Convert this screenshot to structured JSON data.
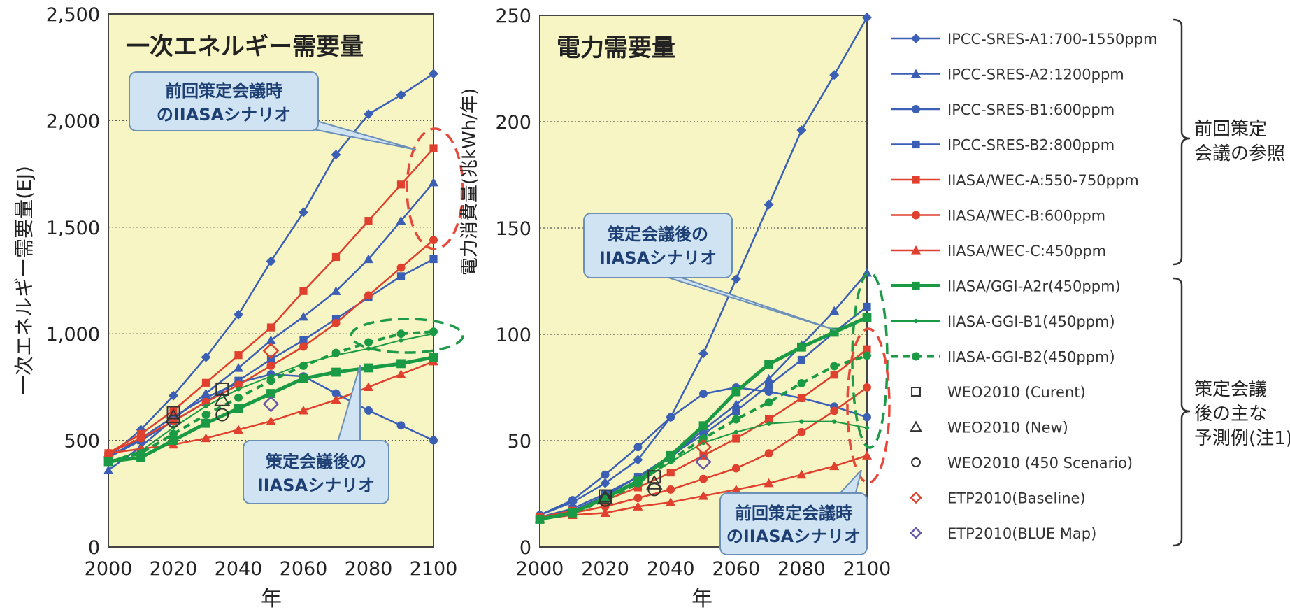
{
  "colors": {
    "plot_bg": "#f8f5c4",
    "blue": "#3a5fb4",
    "red": "#e0402e",
    "green": "#1a9a44",
    "callout_bg": "#cfe3f2",
    "callout_border": "#6c8fb8",
    "dash_red": "#e64a3c",
    "dash_green": "#1f9a48"
  },
  "legend": {
    "entries": [
      {
        "label": "IPCC-SRES-A1:700-1550ppm",
        "color": "#3a5fb4",
        "marker": "diamond",
        "line": "solid"
      },
      {
        "label": "IPCC-SRES-A2:1200ppm",
        "color": "#3a5fb4",
        "marker": "triangle",
        "line": "solid"
      },
      {
        "label": "IPCC-SRES-B1:600ppm",
        "color": "#3a5fb4",
        "marker": "circle",
        "line": "solid"
      },
      {
        "label": "IPCC-SRES-B2:800ppm",
        "color": "#3a5fb4",
        "marker": "square",
        "line": "solid"
      },
      {
        "label": "IIASA/WEC-A:550-750ppm",
        "color": "#e0402e",
        "marker": "square",
        "line": "solid"
      },
      {
        "label": "IIASA/WEC-B:600ppm",
        "color": "#e0402e",
        "marker": "circle",
        "line": "solid"
      },
      {
        "label": "IIASA/WEC-C:450ppm",
        "color": "#e0402e",
        "marker": "triangle",
        "line": "solid"
      },
      {
        "label": "IIASA/GGI-A2r(450ppm)",
        "color": "#1a9a44",
        "marker": "square",
        "line": "thick"
      },
      {
        "label": "IIASA-GGI-B1(450ppm)",
        "color": "#1a9a44",
        "marker": "dot",
        "line": "thin"
      },
      {
        "label": "IIASA-GGI-B2(450ppm)",
        "color": "#1a9a44",
        "marker": "circle",
        "line": "dashed"
      },
      {
        "label": "WEO2010 (Curent)",
        "color": "#333333",
        "marker": "open-square",
        "line": "none"
      },
      {
        "label": "WEO2010 (New)",
        "color": "#333333",
        "marker": "open-triangle",
        "line": "none"
      },
      {
        "label": "WEO2010 (450 Scenario)",
        "color": "#333333",
        "marker": "open-circle",
        "line": "none"
      },
      {
        "label": "ETP2010(Baseline)",
        "color": "#e0402e",
        "marker": "open-diamond",
        "line": "none"
      },
      {
        "label": "ETP2010(BLUE Map)",
        "color": "#6a5aa6",
        "marker": "open-diamond",
        "line": "none"
      }
    ],
    "groups": [
      {
        "label_lines": [
          "前回策定",
          "会議の参照"
        ]
      },
      {
        "label_lines": [
          "策定会議",
          "後の主な",
          "予測例(注1)"
        ]
      }
    ]
  },
  "chart_data": [
    {
      "type": "line",
      "title": "一次エネルギー需要量",
      "xlabel": "年",
      "ylabel": "一次エネルギー需要量(EJ)",
      "xlim": [
        2000,
        2100
      ],
      "ylim": [
        0,
        2500
      ],
      "x_ticks": [
        2000,
        2020,
        2040,
        2060,
        2080,
        2100
      ],
      "x_tick_labels": [
        "2000",
        "2020",
        "2040",
        "2060",
        "2080",
        "2100"
      ],
      "y_ticks": [
        0,
        500,
        1000,
        1500,
        2000,
        2500
      ],
      "y_tick_labels": [
        "0",
        "500",
        "1,000",
        "1,500",
        "2,000",
        "2,500"
      ],
      "grid": "horizontal-dotted",
      "series": [
        {
          "name": "IPCC-SRES-A1:700-1550ppm",
          "x": [
            2000,
            2010,
            2020,
            2030,
            2040,
            2050,
            2060,
            2070,
            2080,
            2090,
            2100
          ],
          "values": [
            420,
            550,
            710,
            890,
            1090,
            1340,
            1570,
            1840,
            2030,
            2120,
            2220
          ]
        },
        {
          "name": "IPCC-SRES-A2:1200ppm",
          "x": [
            2000,
            2010,
            2020,
            2030,
            2040,
            2050,
            2060,
            2070,
            2080,
            2090,
            2100
          ],
          "values": [
            360,
            470,
            600,
            720,
            840,
            970,
            1080,
            1200,
            1350,
            1530,
            1710
          ]
        },
        {
          "name": "IPCC-SRES-B1:600ppm",
          "x": [
            2000,
            2010,
            2020,
            2030,
            2040,
            2050,
            2060,
            2070,
            2080,
            2090,
            2100
          ],
          "values": [
            420,
            510,
            610,
            700,
            770,
            810,
            800,
            720,
            640,
            570,
            500
          ]
        },
        {
          "name": "IPCC-SRES-B2:800ppm",
          "x": [
            2000,
            2010,
            2020,
            2030,
            2040,
            2050,
            2060,
            2070,
            2080,
            2090,
            2100
          ],
          "values": [
            420,
            500,
            590,
            680,
            780,
            880,
            970,
            1070,
            1170,
            1270,
            1350
          ]
        },
        {
          "name": "IIASA/WEC-A:550-750ppm",
          "x": [
            2000,
            2010,
            2020,
            2030,
            2040,
            2050,
            2060,
            2070,
            2080,
            2090,
            2100
          ],
          "values": [
            440,
            530,
            640,
            770,
            900,
            1030,
            1200,
            1360,
            1530,
            1700,
            1870
          ]
        },
        {
          "name": "IIASA/WEC-B:600ppm",
          "x": [
            2000,
            2010,
            2020,
            2030,
            2040,
            2050,
            2060,
            2070,
            2080,
            2090,
            2100
          ],
          "values": [
            440,
            510,
            590,
            680,
            760,
            850,
            940,
            1050,
            1180,
            1310,
            1440
          ]
        },
        {
          "name": "IIASA/WEC-C:450ppm",
          "x": [
            2000,
            2010,
            2020,
            2030,
            2040,
            2050,
            2060,
            2070,
            2080,
            2090,
            2100
          ],
          "values": [
            440,
            460,
            480,
            510,
            550,
            590,
            640,
            690,
            750,
            810,
            870
          ]
        },
        {
          "name": "IIASA/GGI-A2r(450ppm)",
          "x": [
            2000,
            2010,
            2020,
            2030,
            2040,
            2050,
            2060,
            2070,
            2080,
            2090,
            2100
          ],
          "values": [
            400,
            420,
            500,
            580,
            650,
            720,
            790,
            820,
            840,
            860,
            890
          ]
        },
        {
          "name": "IIASA-GGI-B1(450ppm)",
          "x": [
            2000,
            2010,
            2020,
            2030,
            2040,
            2050,
            2060,
            2070,
            2080,
            2090,
            2100
          ],
          "values": [
            400,
            450,
            560,
            660,
            740,
            800,
            860,
            900,
            930,
            970,
            1000
          ]
        },
        {
          "name": "IIASA-GGI-B2(450ppm)",
          "x": [
            2000,
            2010,
            2020,
            2030,
            2040,
            2050,
            2060,
            2070,
            2080,
            2090,
            2100
          ],
          "values": [
            400,
            440,
            530,
            620,
            700,
            780,
            850,
            910,
            960,
            1000,
            1010
          ]
        },
        {
          "name": "WEO2010 (Curent)",
          "x": [
            2020,
            2035
          ],
          "values": [
            630,
            740
          ]
        },
        {
          "name": "WEO2010 (New)",
          "x": [
            2020,
            2035
          ],
          "values": [
            610,
            690
          ]
        },
        {
          "name": "WEO2010 (450 Scenario)",
          "x": [
            2020,
            2035
          ],
          "values": [
            590,
            620
          ]
        },
        {
          "name": "ETP2010(Baseline)",
          "x": [
            2050
          ],
          "values": [
            920
          ]
        },
        {
          "name": "ETP2010(BLUE Map)",
          "x": [
            2050
          ],
          "values": [
            670
          ]
        }
      ],
      "annotations": [
        {
          "text_lines": [
            "前回策定会議時",
            "のIIASAシナリオ"
          ],
          "target": "ellipse-red"
        },
        {
          "text_lines": [
            "策定会議後の",
            "IIASAシナリオ"
          ],
          "target": "ellipse-green"
        }
      ]
    },
    {
      "type": "line",
      "title": "電力需要量",
      "xlabel": "年",
      "ylabel": "電力消費量(兆kWh/年)",
      "xlim": [
        2000,
        2100
      ],
      "ylim": [
        0,
        250
      ],
      "x_ticks": [
        2000,
        2020,
        2040,
        2060,
        2080,
        2100
      ],
      "x_tick_labels": [
        "2000",
        "2020",
        "2040",
        "2060",
        "2080",
        "2100"
      ],
      "y_ticks": [
        0,
        50,
        100,
        150,
        200,
        250
      ],
      "y_tick_labels": [
        "0",
        "50",
        "100",
        "150",
        "200",
        "250"
      ],
      "grid": "horizontal-dotted",
      "series": [
        {
          "name": "IPCC-SRES-A1:700-1550ppm",
          "x": [
            2000,
            2010,
            2020,
            2030,
            2040,
            2050,
            2060,
            2070,
            2080,
            2090,
            2100
          ],
          "values": [
            15,
            21,
            30,
            41,
            61,
            91,
            126,
            161,
            196,
            222,
            249
          ]
        },
        {
          "name": "IPCC-SRES-A2:1200ppm",
          "x": [
            2000,
            2010,
            2020,
            2030,
            2040,
            2050,
            2060,
            2070,
            2080,
            2090,
            2100
          ],
          "values": [
            13,
            17,
            24,
            33,
            42,
            55,
            67,
            79,
            95,
            111,
            129
          ]
        },
        {
          "name": "IPCC-SRES-B1:600ppm",
          "x": [
            2000,
            2010,
            2020,
            2030,
            2040,
            2050,
            2060,
            2070,
            2080,
            2090,
            2100
          ],
          "values": [
            15,
            22,
            34,
            47,
            61,
            72,
            75,
            73,
            70,
            66,
            61
          ]
        },
        {
          "name": "IPCC-SRES-B2:800ppm",
          "x": [
            2000,
            2010,
            2020,
            2030,
            2040,
            2050,
            2060,
            2070,
            2080,
            2090,
            2100
          ],
          "values": [
            14,
            18,
            25,
            33,
            43,
            53,
            64,
            76,
            88,
            101,
            113
          ]
        },
        {
          "name": "IIASA/WEC-A:550-750ppm",
          "x": [
            2000,
            2010,
            2020,
            2030,
            2040,
            2050,
            2060,
            2070,
            2080,
            2090,
            2100
          ],
          "values": [
            14,
            17,
            22,
            28,
            35,
            43,
            51,
            60,
            70,
            81,
            93
          ]
        },
        {
          "name": "IIASA/WEC-B:600ppm",
          "x": [
            2000,
            2010,
            2020,
            2030,
            2040,
            2050,
            2060,
            2070,
            2080,
            2090,
            2100
          ],
          "values": [
            14,
            16,
            19,
            23,
            27,
            32,
            37,
            44,
            54,
            64,
            75
          ]
        },
        {
          "name": "IIASA/WEC-C:450ppm",
          "x": [
            2000,
            2010,
            2020,
            2030,
            2040,
            2050,
            2060,
            2070,
            2080,
            2090,
            2100
          ],
          "values": [
            13,
            15,
            16,
            19,
            21,
            24,
            27,
            30,
            34,
            38,
            43
          ]
        },
        {
          "name": "IIASA/GGI-A2r(450ppm)",
          "x": [
            2000,
            2010,
            2020,
            2030,
            2040,
            2050,
            2060,
            2070,
            2080,
            2090,
            2100
          ],
          "values": [
            13,
            16,
            23,
            31,
            43,
            57,
            73,
            86,
            94,
            101,
            108
          ]
        },
        {
          "name": "IIASA-GGI-B1(450ppm)",
          "x": [
            2000,
            2010,
            2020,
            2030,
            2040,
            2050,
            2060,
            2070,
            2080,
            2090,
            2100
          ],
          "values": [
            13,
            16,
            23,
            30,
            40,
            49,
            54,
            58,
            59,
            59,
            56
          ]
        },
        {
          "name": "IIASA-GGI-B2(450ppm)",
          "x": [
            2000,
            2010,
            2020,
            2030,
            2040,
            2050,
            2060,
            2070,
            2080,
            2090,
            2100
          ],
          "values": [
            13,
            16,
            22,
            30,
            41,
            51,
            60,
            68,
            77,
            85,
            90
          ]
        },
        {
          "name": "WEO2010 (Curent)",
          "x": [
            2020,
            2035
          ],
          "values": [
            24,
            33
          ]
        },
        {
          "name": "WEO2010 (New)",
          "x": [
            2020,
            2035
          ],
          "values": [
            23,
            30
          ]
        },
        {
          "name": "WEO2010 (450 Scenario)",
          "x": [
            2020,
            2035
          ],
          "values": [
            22,
            27
          ]
        },
        {
          "name": "ETP2010(Baseline)",
          "x": [
            2050
          ],
          "values": [
            47
          ]
        },
        {
          "name": "ETP2010(BLUE Map)",
          "x": [
            2050
          ],
          "values": [
            40
          ]
        }
      ],
      "annotations": [
        {
          "text_lines": [
            "策定会議後の",
            "IIASAシナリオ"
          ],
          "target": "ellipse-green"
        },
        {
          "text_lines": [
            "前回策定会議時",
            "のIIASAシナリオ"
          ],
          "target": "ellipse-red"
        }
      ]
    }
  ]
}
